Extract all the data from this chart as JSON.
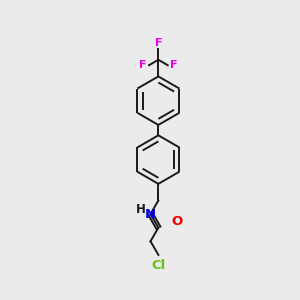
{
  "background_color": "#ebebeb",
  "bond_color": "#1a1a1a",
  "atom_colors": {
    "F": "#ee00ee",
    "Cl": "#6abf1e",
    "N": "#0000ee",
    "O": "#ee0000",
    "H": "#000000",
    "C": "#000000"
  },
  "lw": 1.4,
  "figsize": [
    3.0,
    3.0
  ],
  "dpi": 100
}
